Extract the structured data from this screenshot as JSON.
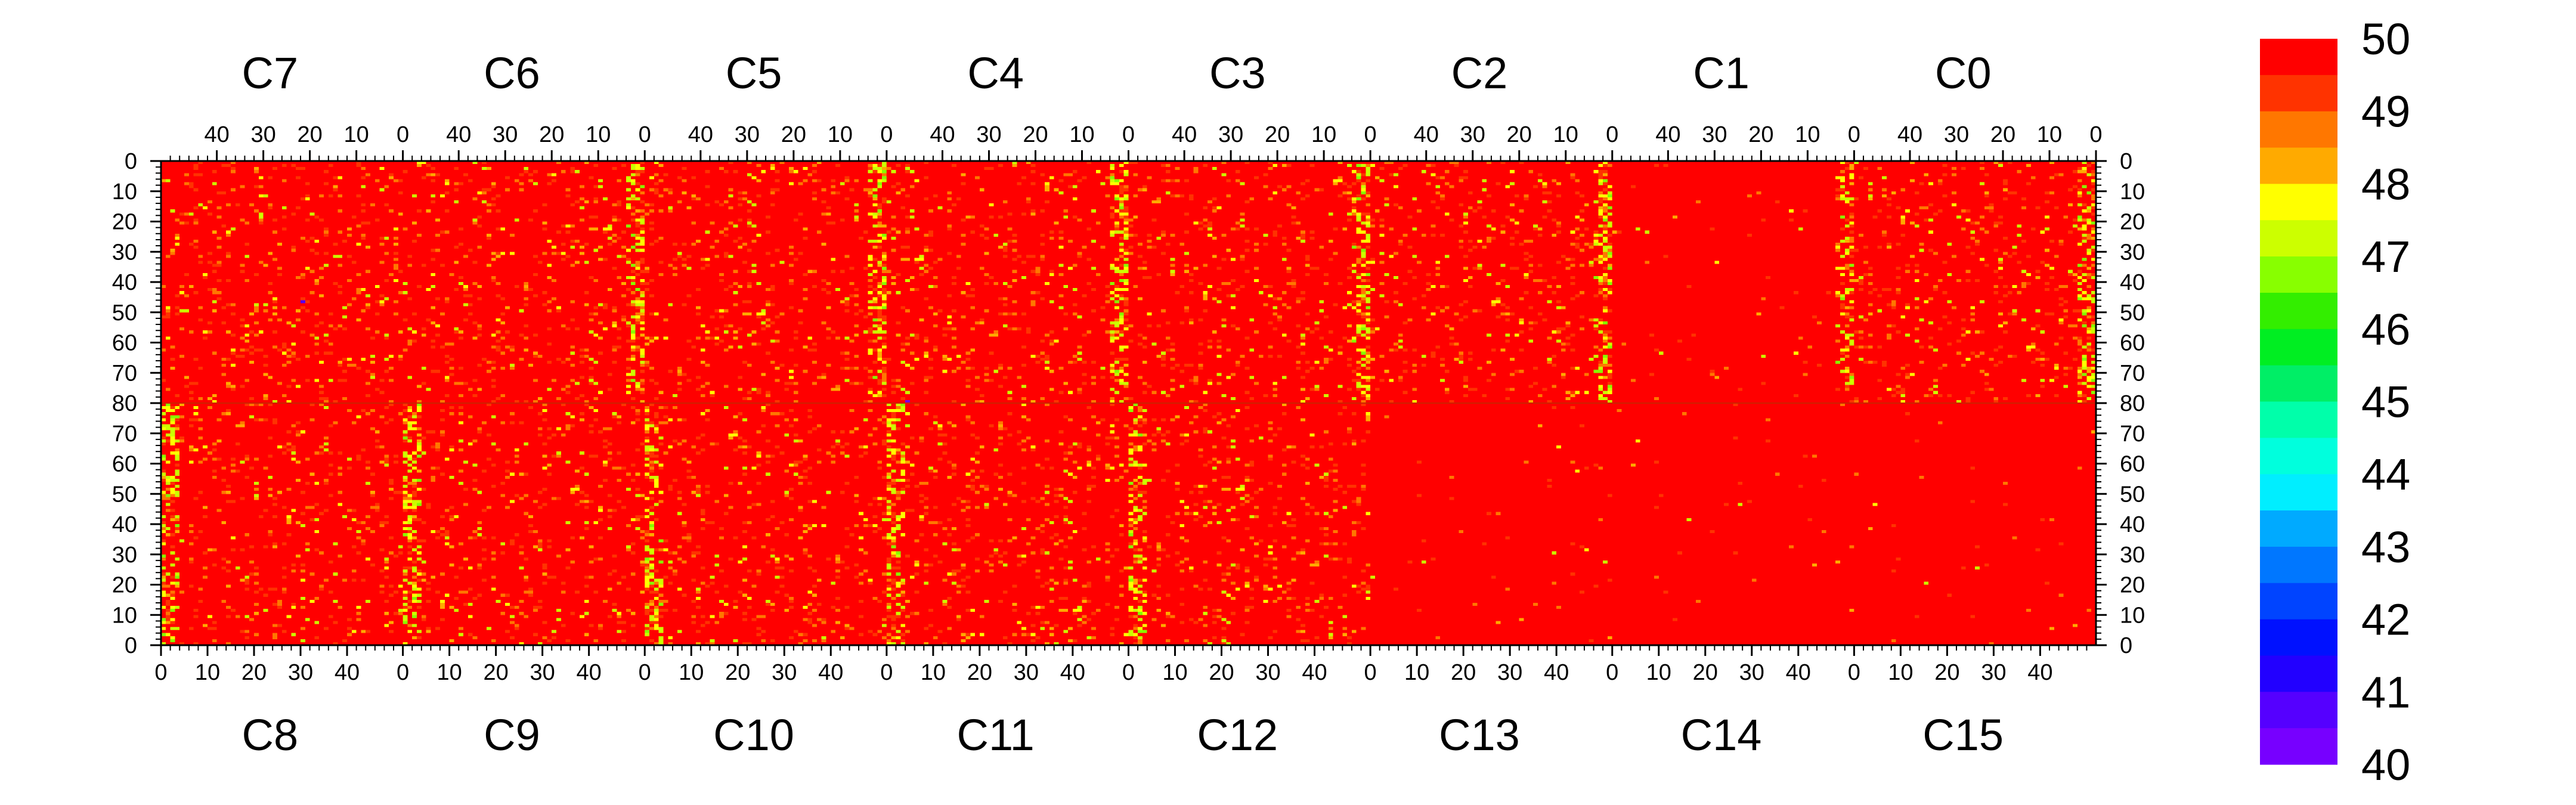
{
  "chart_data": {
    "type": "heatmap",
    "title": "",
    "xlabel": "",
    "ylabel": "",
    "zlim": [
      40,
      50
    ],
    "top_chip_labels": [
      "C7",
      "C6",
      "C5",
      "C4",
      "C3",
      "C2",
      "C1",
      "C0"
    ],
    "bottom_chip_labels": [
      "C8",
      "C9",
      "C10",
      "C11",
      "C12",
      "C13",
      "C14",
      "C15"
    ],
    "top_x_ticks": [
      "40",
      "30",
      "20",
      "10",
      "0"
    ],
    "bottom_x_ticks": [
      "0",
      "10",
      "20",
      "30",
      "40"
    ],
    "top_half_y_ticks": [
      "0",
      "10",
      "20",
      "30",
      "40",
      "50",
      "60",
      "70",
      "80"
    ],
    "bottom_half_y_ticks": [
      "70",
      "60",
      "50",
      "40",
      "30",
      "20",
      "10",
      "0"
    ],
    "columns_per_chip": 52,
    "rows_per_half": 80,
    "colorbar": {
      "labels": [
        "50",
        "49",
        "48",
        "47",
        "46",
        "45",
        "44",
        "43",
        "42",
        "41",
        "40"
      ],
      "colors": [
        "#ff0000",
        "#ff3300",
        "#ff7700",
        "#ffaa00",
        "#ffff00",
        "#ccff00",
        "#88ff00",
        "#33ee00",
        "#00ee22",
        "#00ee66",
        "#00ffaa",
        "#00ffdd",
        "#00eeff",
        "#00aaff",
        "#0077ff",
        "#0044ff",
        "#0011ff",
        "#2200ff",
        "#5500ff",
        "#7700ff"
      ]
    },
    "notable_cells": [
      {
        "chip": "C7",
        "col": 30,
        "row": 46,
        "value": 41
      },
      {
        "chip": "C4",
        "col": 4,
        "row": 80,
        "value": 40
      }
    ]
  }
}
